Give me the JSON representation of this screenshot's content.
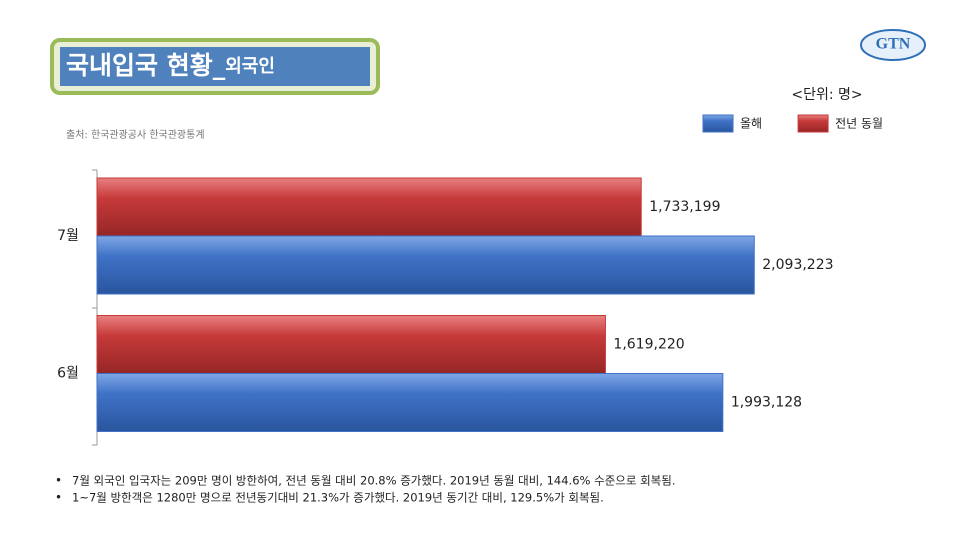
{
  "logo": "GTN",
  "chart_data": {
    "type": "hbar",
    "title": "국내입국 현황_",
    "title_suffix": "외국인",
    "source": "출처: 한국관광공사 한국관광통계",
    "unit": "<단위: 명>",
    "categories": [
      "7월",
      "6월"
    ],
    "series": [
      {
        "name": "올해",
        "color": "#3f72c6",
        "values": [
          2093223,
          1993128
        ],
        "value_labels": [
          "2,093,223",
          "1,993,128"
        ]
      },
      {
        "name": "전년 동월",
        "color": "#c73a3a",
        "values": [
          1733199,
          1619220
        ],
        "value_labels": [
          "1,733,199",
          "1,619,220"
        ]
      }
    ],
    "xlim": [
      0,
      2500000
    ],
    "notes": [
      "7월 외국인 입국자는 209만 명이 방한하여, 전년 동월 대비 20.8% 증가했다. 2019년 동월 대비, 144.6% 수준으로 회복됨.",
      "1~7월 방한객은 1280만 명으로 전년동기대비 21.3%가 증가했다. 2019년 동기간 대비, 129.5%가 회복됨."
    ]
  }
}
